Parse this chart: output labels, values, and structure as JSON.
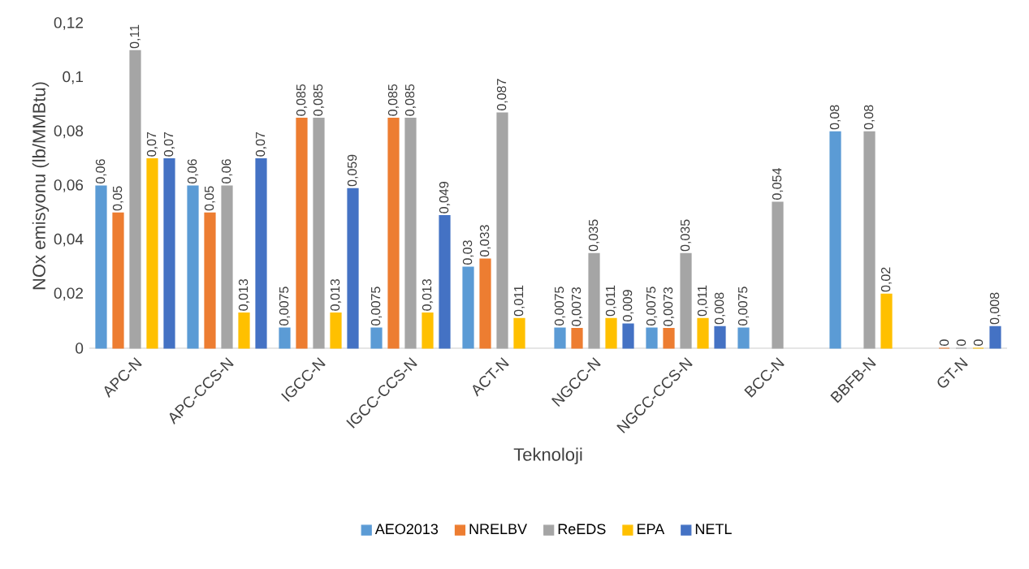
{
  "chart_data": {
    "type": "bar",
    "xlabel": "Teknoloji",
    "ylabel": "NOx emisyonu (lb/MMBtu)",
    "categories": [
      "APC-N",
      "APC-CCS-N",
      "IGCC-N",
      "IGCC-CCS-N",
      "ACT-N",
      "NGCC-N",
      "NGCC-CCS-N",
      "BCC-N",
      "BBFB-N",
      "GT-N"
    ],
    "series": [
      {
        "name": "AEO2013",
        "color": "#5b9bd5",
        "values": [
          0.06,
          0.06,
          0.0075,
          0.0075,
          0.03,
          0.0075,
          0.0075,
          0.0075,
          0.08,
          null
        ],
        "value_labels": [
          "0,06",
          "0,06",
          "0,0075",
          "0,0075",
          "0,03",
          "0,0075",
          "0,0075",
          "0,0075",
          "0,08",
          null
        ]
      },
      {
        "name": "NRELBV",
        "color": "#ed7d31",
        "values": [
          0.05,
          0.05,
          0.085,
          0.085,
          0.033,
          0.0073,
          0.0073,
          null,
          null,
          0
        ],
        "value_labels": [
          "0,05",
          "0,05",
          "0,085",
          "0,085",
          "0,033",
          "0,0073",
          "0,0073",
          null,
          null,
          "0"
        ]
      },
      {
        "name": "ReEDS",
        "color": "#a5a5a5",
        "values": [
          0.11,
          0.06,
          0.085,
          0.085,
          0.087,
          0.035,
          0.035,
          0.054,
          0.08,
          0
        ],
        "value_labels": [
          "0,11",
          "0,06",
          "0,085",
          "0,085",
          "0,087",
          "0,035",
          "0,035",
          "0,054",
          "0,08",
          "0"
        ]
      },
      {
        "name": "EPA",
        "color": "#ffc000",
        "values": [
          0.07,
          0.013,
          0.013,
          0.013,
          0.011,
          0.011,
          0.011,
          null,
          0.02,
          0
        ],
        "value_labels": [
          "0,07",
          "0,013",
          "0,013",
          "0,013",
          "0,011",
          "0,011",
          "0,011",
          null,
          "0,02",
          "0"
        ]
      },
      {
        "name": "NETL",
        "color": "#4472c4",
        "values": [
          0.07,
          0.07,
          0.059,
          0.049,
          null,
          0.009,
          0.008,
          null,
          null,
          0.008
        ],
        "value_labels": [
          "0,07",
          "0,07",
          "0,059",
          "0,049",
          null,
          "0,009",
          "0,008",
          null,
          null,
          "0,008"
        ]
      }
    ],
    "ylim": [
      0,
      0.12
    ],
    "yticks": [
      {
        "value": 0,
        "label": "0"
      },
      {
        "value": 0.02,
        "label": "0,02"
      },
      {
        "value": 0.04,
        "label": "0,04"
      },
      {
        "value": 0.06,
        "label": "0,06"
      },
      {
        "value": 0.08,
        "label": "0,08"
      },
      {
        "value": 0.1,
        "label": "0,1"
      },
      {
        "value": 0.12,
        "label": "0,12"
      }
    ],
    "legend": "bottom"
  }
}
